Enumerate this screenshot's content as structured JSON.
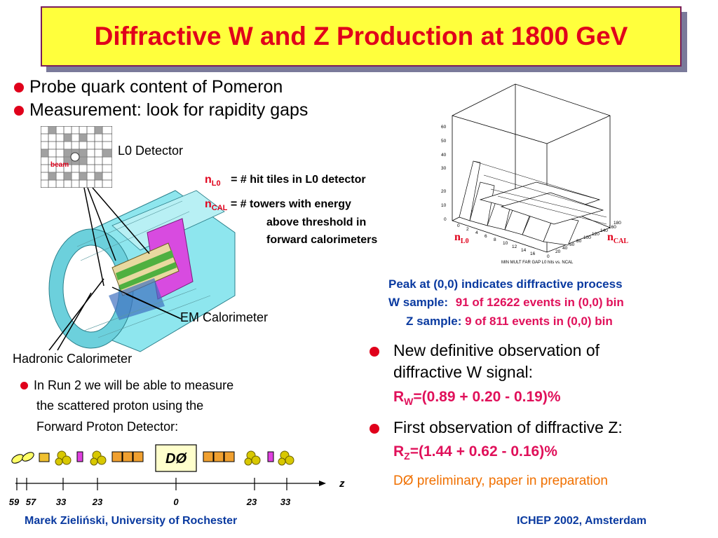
{
  "title": "Diffractive W and Z Production at 1800 GeV",
  "bullets_top": [
    "Probe quark content of Pomeron",
    "Measurement: look for rapidity gaps"
  ],
  "detector": {
    "l0_label": "L0 Detector",
    "beam_label": "beam",
    "em_label": "EM Calorimeter",
    "had_label": "Hadronic Calorimeter"
  },
  "defs": {
    "nl0_n": "n",
    "nl0_sub": "L0",
    "nl0_text": "=  #  hit tiles in L0 detector",
    "ncal_n": "n",
    "ncal_sub": "CAL",
    "ncal_text": "=  #  towers with energy",
    "ncal_line2": "above threshold in",
    "ncal_line3": "forward calorimeters"
  },
  "lego_plot": {
    "z_ticks": [
      "0",
      "10",
      "20",
      "30",
      "40",
      "50",
      "60"
    ],
    "x_ticks": [
      "0",
      "2",
      "4",
      "6",
      "8",
      "10",
      "12",
      "14",
      "16"
    ],
    "y_ticks": [
      "0",
      "20",
      "40",
      "60",
      "80",
      "100",
      "120",
      "140",
      "160",
      "180"
    ],
    "caption": "MIN MULT FAR GAP L0 hits vs. NCAL",
    "nl0_n": "n",
    "nl0_sub": "L0",
    "ncal_n": "n",
    "ncal_sub": "CAL"
  },
  "peak": {
    "line1": "Peak at (0,0) indicates diffractive process",
    "w_label": "W sample:",
    "w_value": "91 of 12622 events in (0,0) bin",
    "z_label": "Z sample:",
    "z_value": "9 of 811 events in (0,0) bin"
  },
  "results": {
    "b1_line1": "New definitive observation of",
    "b1_line2": "diffractive W signal:",
    "rw_r": "R",
    "rw_sub": "W",
    "rw_val": "=(0.89 + 0.20 - 0.19)%",
    "b2_line1": "First observation of diffractive Z:",
    "rz_r": "R",
    "rz_sub": "Z",
    "rz_val": "=(1.44 + 0.62 - 0.16)%",
    "prelim": "DØ  preliminary, paper in preparation"
  },
  "run2": {
    "line1": "In Run 2 we will be able to measure",
    "line2": "the scattered proton using the",
    "line3": "Forward Proton Detector:"
  },
  "beamline": {
    "d0_label": "DØ",
    "z_label": "z",
    "tick_labels": [
      "59",
      "57",
      "33",
      "23",
      "0",
      "23",
      "33"
    ]
  },
  "footer": {
    "author": "Marek Zieliński, University of Rochester",
    "conf": "ICHEP 2002, Amsterdam"
  },
  "colors": {
    "title_bg": "#ffff3c",
    "title_text": "#e0001b",
    "bullet": "#e0001b",
    "blue": "#0a3aa0",
    "magenta": "#e0105a",
    "orange": "#f07000"
  }
}
